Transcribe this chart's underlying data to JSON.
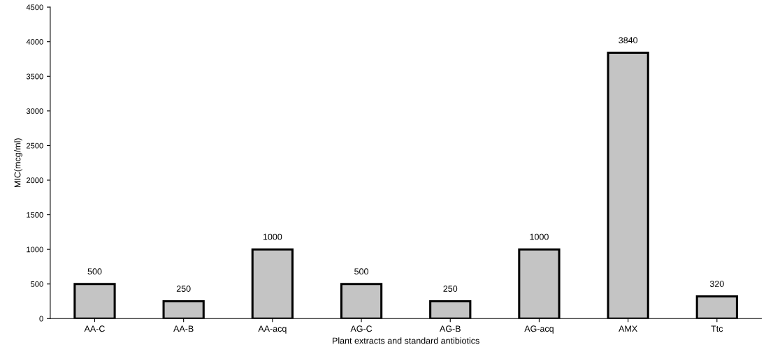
{
  "chart_data": {
    "type": "bar",
    "xlabel": "Plant extracts and standard antibiotics",
    "ylabel": "MIC(mcg/ml)",
    "categories": [
      "AA-C",
      "AA-B",
      "AA-acq",
      "AG-C",
      "AG-B",
      "AG-acq",
      "AMX",
      "Ttc"
    ],
    "values": [
      500,
      250,
      1000,
      500,
      250,
      1000,
      3840,
      320
    ],
    "color": "#c4c4c4",
    "data_labels": true,
    "ylim": [
      0,
      4500
    ],
    "yticks": [
      0,
      500,
      1000,
      1500,
      2000,
      2500,
      3000,
      3500,
      4000,
      4500
    ],
    "grid": false,
    "legend": false
  }
}
